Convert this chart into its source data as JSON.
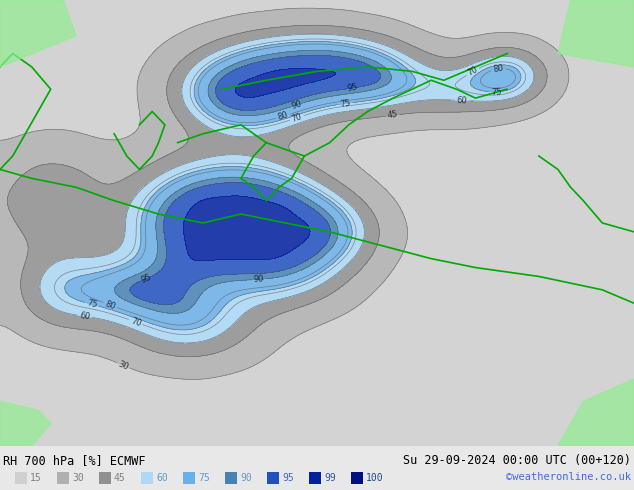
{
  "title_left": "RH 700 hPa [%] ECMWF",
  "title_right": "Su 29-09-2024 00:00 UTC (00+120)",
  "credit": "©weatheronline.co.uk",
  "legend_values": [
    15,
    30,
    45,
    60,
    75,
    90,
    95,
    99,
    100
  ],
  "legend_colors": [
    "#d4d4d4",
    "#b0b0b0",
    "#8c8c8c",
    "#add8f7",
    "#87ceeb",
    "#6495ed",
    "#4169e1",
    "#0000cd",
    "#00008b"
  ],
  "bg_color": "#e8e8e8",
  "border_color": "#000000",
  "map_bg": "#c8c8c8",
  "text_color_left": "#000000",
  "text_color_right": "#000000",
  "credit_color": "#4169e1",
  "bottom_bar_color": "#e0e0e0",
  "figsize": [
    6.34,
    4.9
  ],
  "dpi": 100
}
